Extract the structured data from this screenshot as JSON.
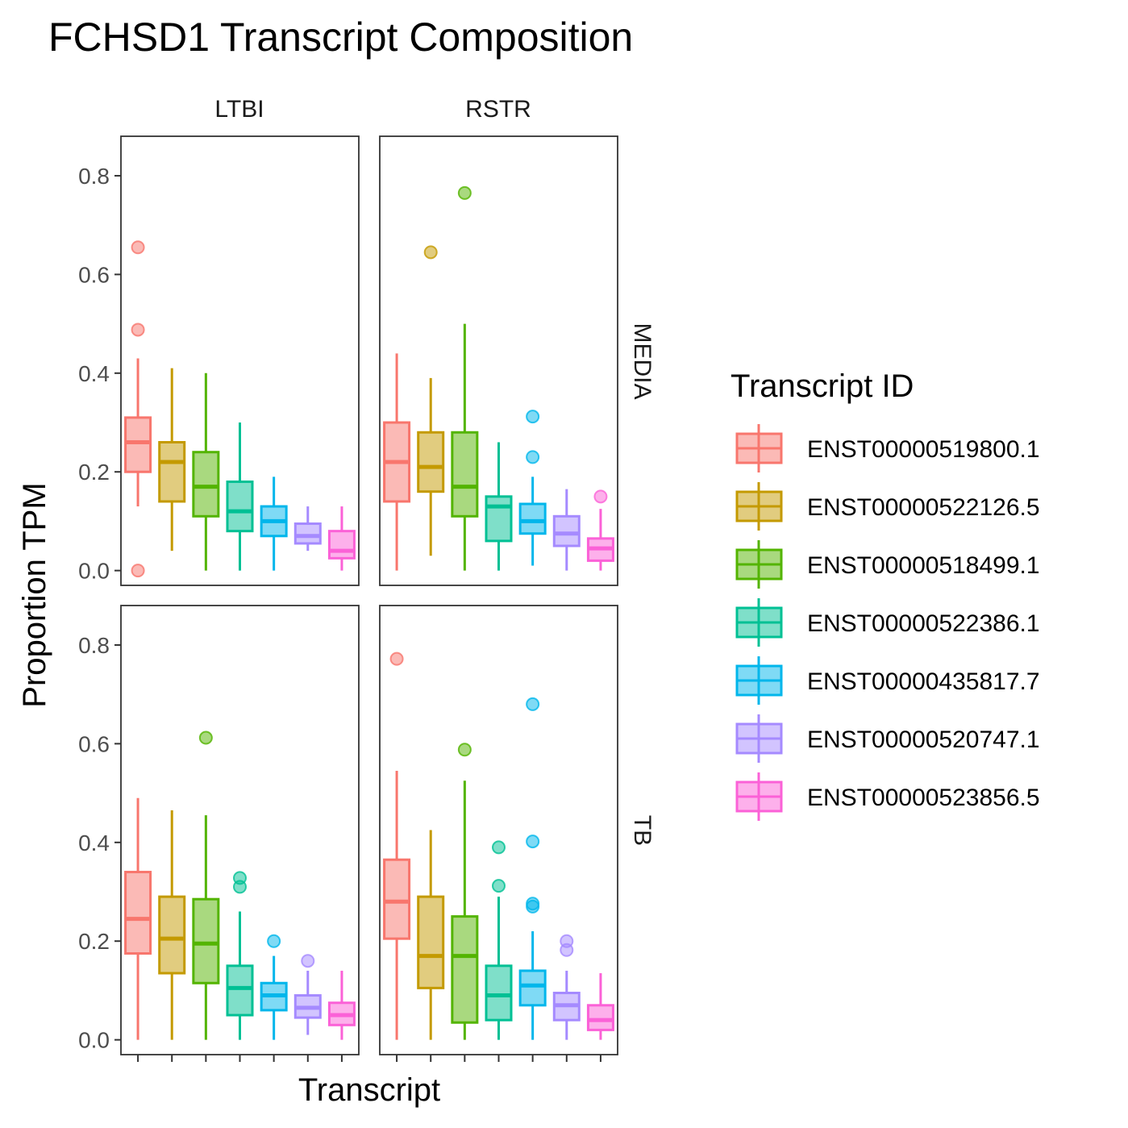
{
  "chart_data": {
    "type": "box",
    "title": "FCHSD1 Transcript Composition",
    "xlabel": "Transcript",
    "ylabel": "Proportion TPM",
    "ylim": [
      -0.03,
      0.88
    ],
    "yticks": [
      "0.0",
      "0.2",
      "0.4",
      "0.6",
      "0.8"
    ],
    "grid": false,
    "facet_columns": [
      "LTBI",
      "RSTR"
    ],
    "facet_rows": [
      "MEDIA",
      "TB"
    ],
    "legend": {
      "title": "Transcript ID",
      "position": "right",
      "entries": [
        {
          "label": "ENST00000519800.1",
          "color": "#F8766D"
        },
        {
          "label": "ENST00000522126.5",
          "color": "#C49A00"
        },
        {
          "label": "ENST00000518499.1",
          "color": "#53B400"
        },
        {
          "label": "ENST00000522386.1",
          "color": "#00C094"
        },
        {
          "label": "ENST00000435817.7",
          "color": "#00B6EB"
        },
        {
          "label": "ENST00000520747.1",
          "color": "#A58AFF"
        },
        {
          "label": "ENST00000523856.5",
          "color": "#FB61D7"
        }
      ]
    },
    "panels": [
      {
        "column": "LTBI",
        "row": "MEDIA",
        "boxes": [
          {
            "min": 0.13,
            "q1": 0.2,
            "median": 0.26,
            "q3": 0.31,
            "max": 0.43,
            "outliers": [
              0.655,
              0.488,
              0.0
            ]
          },
          {
            "min": 0.04,
            "q1": 0.14,
            "median": 0.22,
            "q3": 0.26,
            "max": 0.41,
            "outliers": []
          },
          {
            "min": 0.0,
            "q1": 0.11,
            "median": 0.17,
            "q3": 0.24,
            "max": 0.4,
            "outliers": []
          },
          {
            "min": 0.0,
            "q1": 0.08,
            "median": 0.12,
            "q3": 0.18,
            "max": 0.3,
            "outliers": []
          },
          {
            "min": 0.0,
            "q1": 0.07,
            "median": 0.1,
            "q3": 0.13,
            "max": 0.19,
            "outliers": []
          },
          {
            "min": 0.04,
            "q1": 0.055,
            "median": 0.07,
            "q3": 0.095,
            "max": 0.13,
            "outliers": []
          },
          {
            "min": 0.0,
            "q1": 0.025,
            "median": 0.04,
            "q3": 0.08,
            "max": 0.13,
            "outliers": []
          }
        ]
      },
      {
        "column": "RSTR",
        "row": "MEDIA",
        "boxes": [
          {
            "min": 0.0,
            "q1": 0.14,
            "median": 0.22,
            "q3": 0.3,
            "max": 0.44,
            "outliers": []
          },
          {
            "min": 0.03,
            "q1": 0.16,
            "median": 0.21,
            "q3": 0.28,
            "max": 0.39,
            "outliers": [
              0.645
            ]
          },
          {
            "min": 0.0,
            "q1": 0.11,
            "median": 0.17,
            "q3": 0.28,
            "max": 0.5,
            "outliers": [
              0.765
            ]
          },
          {
            "min": 0.0,
            "q1": 0.06,
            "median": 0.13,
            "q3": 0.15,
            "max": 0.26,
            "outliers": []
          },
          {
            "min": 0.01,
            "q1": 0.075,
            "median": 0.1,
            "q3": 0.135,
            "max": 0.19,
            "outliers": [
              0.312,
              0.23
            ]
          },
          {
            "min": 0.0,
            "q1": 0.05,
            "median": 0.075,
            "q3": 0.11,
            "max": 0.165,
            "outliers": []
          },
          {
            "min": 0.0,
            "q1": 0.02,
            "median": 0.045,
            "q3": 0.065,
            "max": 0.125,
            "outliers": [
              0.15
            ]
          }
        ]
      },
      {
        "column": "LTBI",
        "row": "TB",
        "boxes": [
          {
            "min": 0.0,
            "q1": 0.175,
            "median": 0.245,
            "q3": 0.34,
            "max": 0.49,
            "outliers": []
          },
          {
            "min": 0.0,
            "q1": 0.135,
            "median": 0.205,
            "q3": 0.29,
            "max": 0.465,
            "outliers": []
          },
          {
            "min": 0.0,
            "q1": 0.115,
            "median": 0.195,
            "q3": 0.285,
            "max": 0.455,
            "outliers": [
              0.612
            ]
          },
          {
            "min": 0.0,
            "q1": 0.05,
            "median": 0.105,
            "q3": 0.15,
            "max": 0.26,
            "outliers": [
              0.328,
              0.31
            ]
          },
          {
            "min": 0.0,
            "q1": 0.06,
            "median": 0.09,
            "q3": 0.115,
            "max": 0.17,
            "outliers": [
              0.2
            ]
          },
          {
            "min": 0.01,
            "q1": 0.045,
            "median": 0.065,
            "q3": 0.09,
            "max": 0.14,
            "outliers": [
              0.16
            ]
          },
          {
            "min": 0.0,
            "q1": 0.03,
            "median": 0.05,
            "q3": 0.075,
            "max": 0.14,
            "outliers": []
          }
        ]
      },
      {
        "column": "RSTR",
        "row": "TB",
        "boxes": [
          {
            "min": 0.0,
            "q1": 0.205,
            "median": 0.28,
            "q3": 0.365,
            "max": 0.545,
            "outliers": [
              0.772
            ]
          },
          {
            "min": 0.0,
            "q1": 0.105,
            "median": 0.17,
            "q3": 0.29,
            "max": 0.425,
            "outliers": []
          },
          {
            "min": 0.0,
            "q1": 0.035,
            "median": 0.17,
            "q3": 0.25,
            "max": 0.525,
            "outliers": [
              0.588
            ]
          },
          {
            "min": 0.0,
            "q1": 0.04,
            "median": 0.09,
            "q3": 0.15,
            "max": 0.29,
            "outliers": [
              0.39,
              0.312
            ]
          },
          {
            "min": 0.0,
            "q1": 0.07,
            "median": 0.11,
            "q3": 0.14,
            "max": 0.22,
            "outliers": [
              0.68,
              0.402,
              0.276,
              0.27
            ]
          },
          {
            "min": 0.0,
            "q1": 0.04,
            "median": 0.07,
            "q3": 0.095,
            "max": 0.14,
            "outliers": [
              0.2,
              0.182
            ]
          },
          {
            "min": 0.0,
            "q1": 0.02,
            "median": 0.04,
            "q3": 0.07,
            "max": 0.135,
            "outliers": []
          }
        ]
      }
    ]
  }
}
